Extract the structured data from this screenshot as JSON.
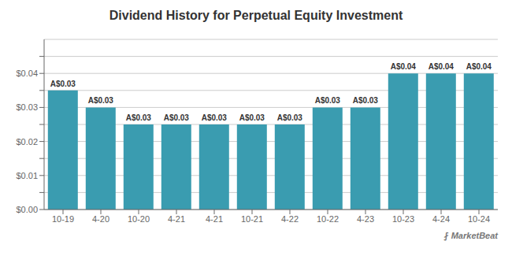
{
  "chart_data": {
    "type": "bar",
    "title": "Dividend History for Perpetual Equity Investment",
    "categories": [
      "10-19",
      "4-20",
      "10-20",
      "4-21",
      "4-21",
      "10-21",
      "4-22",
      "10-22",
      "4-23",
      "10-23",
      "4-24",
      "10-24"
    ],
    "values": [
      0.035,
      0.03,
      0.025,
      0.025,
      0.025,
      0.025,
      0.025,
      0.03,
      0.03,
      0.04,
      0.04,
      0.04
    ],
    "value_labels": [
      "A$0.03",
      "A$0.03",
      "A$0.03",
      "A$0.03",
      "A$0.03",
      "A$0.03",
      "A$0.03",
      "A$0.03",
      "A$0.03",
      "A$0.04",
      "A$0.04",
      "A$0.04"
    ],
    "data_labels": true,
    "color": "#3a9cb0",
    "ylim": [
      0,
      0.05
    ],
    "yticks": [
      {
        "value": 0.0,
        "label": "$0.00"
      },
      {
        "value": 0.005,
        "label": null
      },
      {
        "value": 0.01,
        "label": "$0.01"
      },
      {
        "value": 0.015,
        "label": null
      },
      {
        "value": 0.02,
        "label": "$0.02"
      },
      {
        "value": 0.025,
        "label": null
      },
      {
        "value": 0.03,
        "label": "$0.03"
      },
      {
        "value": 0.035,
        "label": null
      },
      {
        "value": 0.04,
        "label": "$0.04"
      },
      {
        "value": 0.045,
        "label": null
      }
    ],
    "grid": true,
    "annotations": [
      "⨏ MarketBeat"
    ]
  }
}
